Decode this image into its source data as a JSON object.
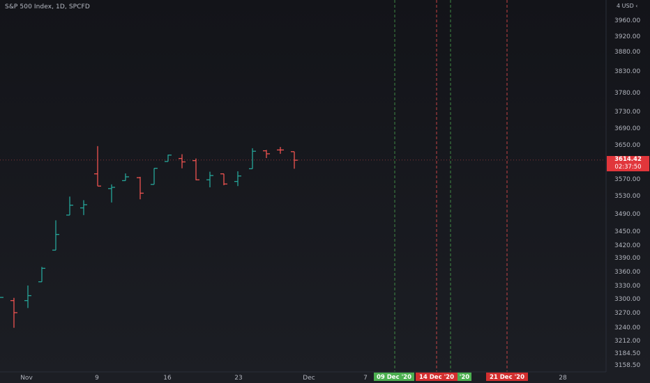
{
  "header": {
    "title": "S&P 500 Index, 1D, SPCFD",
    "currency": "4  USD ‹"
  },
  "price_axis": {
    "ticks": [
      "3960.00",
      "3920.00",
      "3880.00",
      "3830.00",
      "3780.00",
      "3730.00",
      "3690.00",
      "3650.00",
      "3570.00",
      "3530.00",
      "3490.00",
      "3450.00",
      "3420.00",
      "3390.00",
      "3360.00",
      "3330.00",
      "3300.00",
      "3270.00",
      "3240.00",
      "3212.00",
      "3184.50",
      "3158.50"
    ],
    "last_price": "3614.42",
    "countdown": "02:37:50"
  },
  "time_axis": {
    "labels": [
      "Nov",
      "9",
      "16",
      "23",
      "Dec",
      "7",
      "28"
    ],
    "markers": [
      {
        "label": "09 Dec '20",
        "color": "#4caf50",
        "line": "#4caf50"
      },
      {
        "label": "14 Dec '20",
        "color": "#d32f2f",
        "line": "#ff5252"
      },
      {
        "label": "'20",
        "color": "#4caf50",
        "line": "#4caf50"
      },
      {
        "label": "21 Dec '20",
        "color": "#d32f2f",
        "line": "#ff5252"
      }
    ]
  },
  "colors": {
    "up": "#26a69a",
    "down": "#ef5350",
    "axis_text": "#b2b5be"
  },
  "chart_data": {
    "type": "bar",
    "title": "S&P 500 Index, 1D, SPCFD",
    "xlabel": "",
    "ylabel": "",
    "ylim": [
      3150,
      3980
    ],
    "bars": [
      {
        "o": 3303,
        "h": 3303,
        "l": 3303,
        "c": 3303,
        "up": true
      },
      {
        "o": 3296,
        "h": 3302,
        "l": 3239,
        "c": 3270,
        "up": false
      },
      {
        "o": 3296,
        "h": 3330,
        "l": 3280,
        "c": 3307,
        "up": true
      },
      {
        "o": 3338,
        "h": 3370,
        "l": 3338,
        "c": 3367,
        "up": true
      },
      {
        "o": 3408,
        "h": 3475,
        "l": 3408,
        "c": 3443,
        "up": true
      },
      {
        "o": 3487,
        "h": 3528,
        "l": 3487,
        "c": 3509,
        "up": true
      },
      {
        "o": 3503,
        "h": 3520,
        "l": 3487,
        "c": 3510,
        "up": true
      },
      {
        "o": 3582,
        "h": 3647,
        "l": 3553,
        "c": 3553,
        "up": false
      },
      {
        "o": 3547,
        "h": 3557,
        "l": 3515,
        "c": 3550,
        "up": true
      },
      {
        "o": 3566,
        "h": 3583,
        "l": 3566,
        "c": 3575,
        "up": true
      },
      {
        "o": 3573,
        "h": 3575,
        "l": 3522,
        "c": 3536,
        "up": false
      },
      {
        "o": 3557,
        "h": 3595,
        "l": 3557,
        "c": 3595,
        "up": true
      },
      {
        "o": 3611,
        "h": 3627,
        "l": 3611,
        "c": 3626,
        "up": true
      },
      {
        "o": 3618,
        "h": 3628,
        "l": 3595,
        "c": 3610,
        "up": false
      },
      {
        "o": 3613,
        "h": 3618,
        "l": 3567,
        "c": 3568,
        "up": false
      },
      {
        "o": 3568,
        "h": 3587,
        "l": 3550,
        "c": 3578,
        "up": true
      },
      {
        "o": 3582,
        "h": 3582,
        "l": 3555,
        "c": 3558,
        "up": false
      },
      {
        "o": 3564,
        "h": 3588,
        "l": 3553,
        "c": 3577,
        "up": true
      },
      {
        "o": 3594,
        "h": 3642,
        "l": 3594,
        "c": 3635,
        "up": true
      },
      {
        "o": 3636,
        "h": 3638,
        "l": 3619,
        "c": 3629,
        "up": false
      },
      {
        "o": 3638,
        "h": 3645,
        "l": 3629,
        "c": 3638,
        "up": false
      },
      {
        "o": 3634,
        "h": 3634,
        "l": 3594,
        "c": 3614,
        "up": false
      }
    ]
  }
}
